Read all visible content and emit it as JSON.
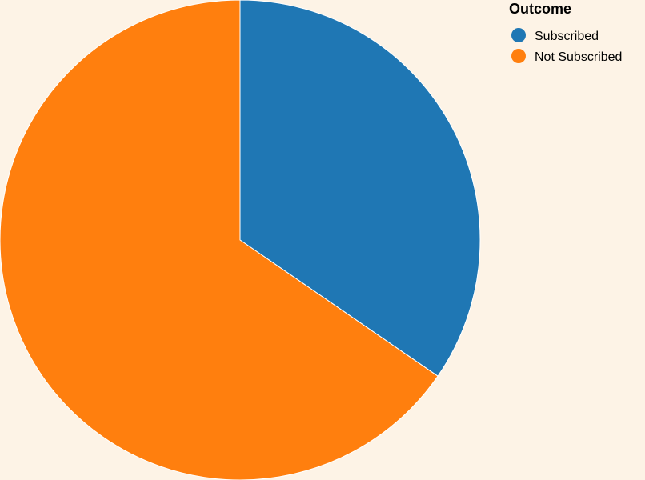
{
  "chart_data": {
    "type": "pie",
    "categories": [
      "Subscribed",
      "Not Subscribed"
    ],
    "values": [
      34.6,
      65.4
    ],
    "colors": [
      "#1f77b4",
      "#ff7f0e"
    ],
    "legend": {
      "title": "Outcome",
      "placement": "top-right"
    }
  },
  "background_color": "#fdf3e6"
}
